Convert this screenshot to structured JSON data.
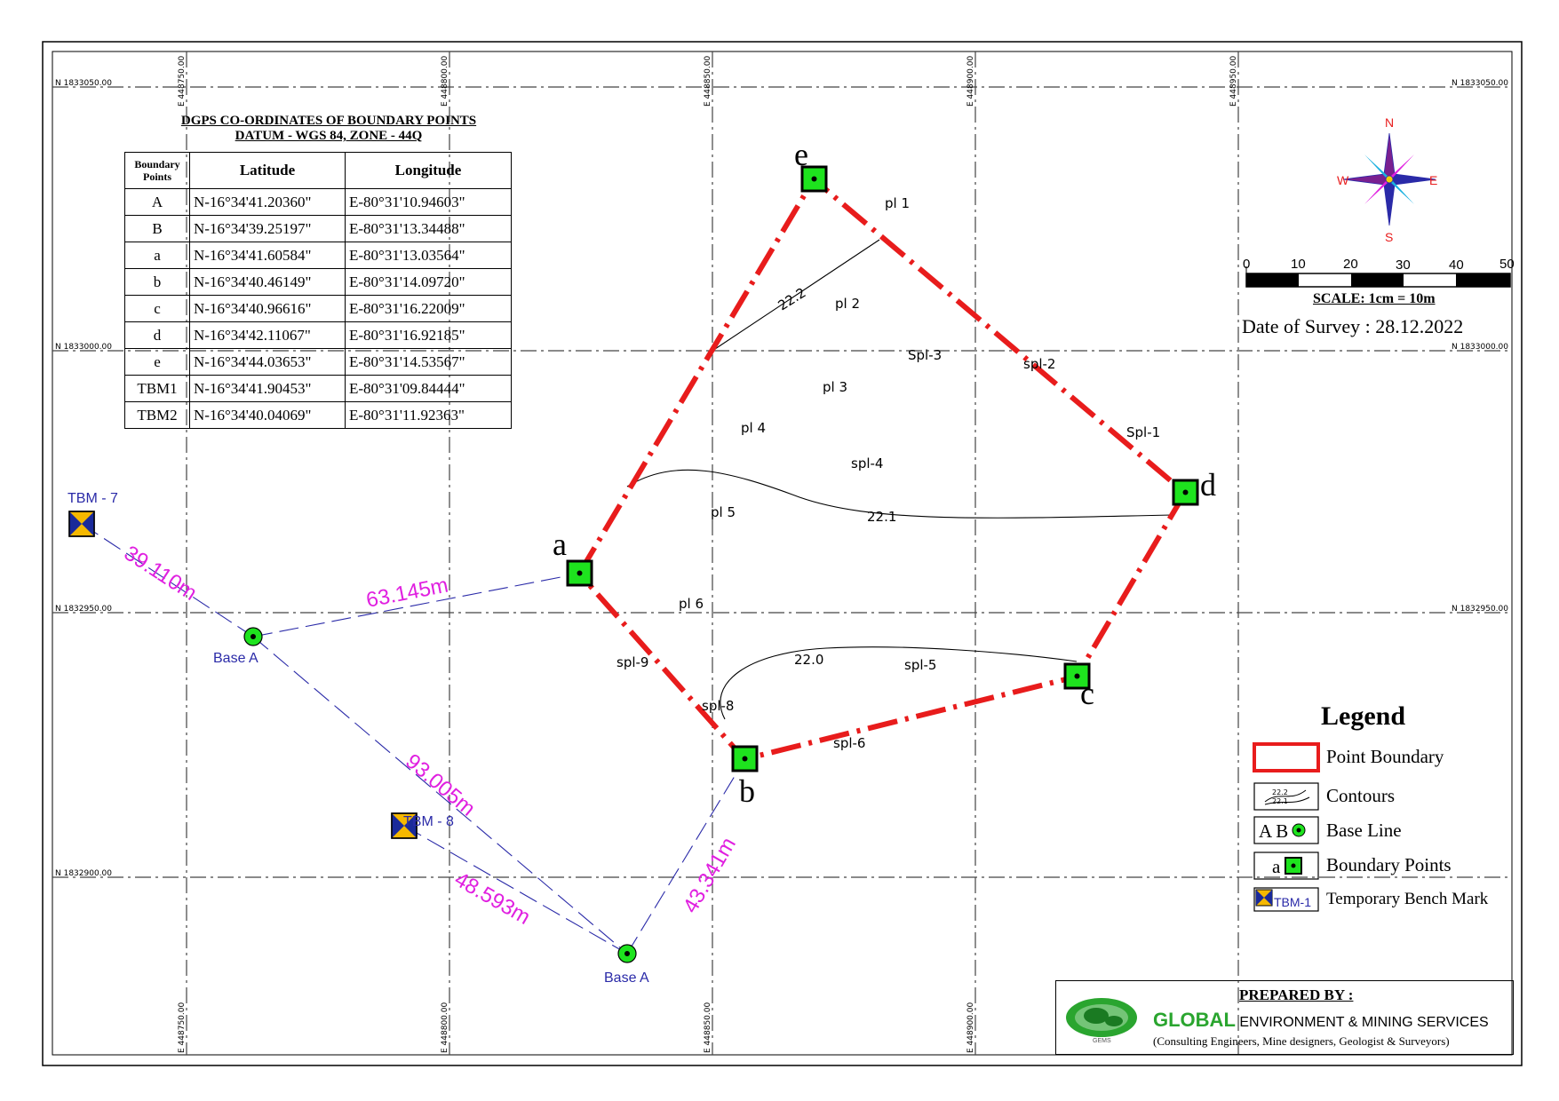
{
  "table": {
    "title": "DGPS CO-ORDINATES OF BOUNDARY POINTS",
    "subtitle": "DATUM - WGS 84,     ZONE - 44Q",
    "headers": [
      "Boundary Points",
      "Latitude",
      "Longitude"
    ],
    "rows": [
      {
        "point": "A",
        "lat": "N-16°34'41.20360\"",
        "lon": "E-80°31'10.94603\""
      },
      {
        "point": "B",
        "lat": "N-16°34'39.25197\"",
        "lon": "E-80°31'13.34488\""
      },
      {
        "point": "a",
        "lat": "N-16°34'41.60584\"",
        "lon": "E-80°31'13.03564\""
      },
      {
        "point": "b",
        "lat": "N-16°34'40.46149\"",
        "lon": "E-80°31'14.09720\""
      },
      {
        "point": "c",
        "lat": "N-16°34'40.96616\"",
        "lon": "E-80°31'16.22009\""
      },
      {
        "point": "d",
        "lat": "N-16°34'42.11067\"",
        "lon": "E-80°31'16.92185\""
      },
      {
        "point": "e",
        "lat": "N-16°34'44.03653\"",
        "lon": "E-80°31'14.53567\""
      },
      {
        "point": "TBM1",
        "lat": "N-16°34'41.90453\"",
        "lon": "E-80°31'09.84444\""
      },
      {
        "point": "TBM2",
        "lat": "N-16°34'40.04069\"",
        "lon": "E-80°31'11.92363\""
      }
    ]
  },
  "grid": {
    "northings": [
      "N 1833050.00",
      "N 1833000.00",
      "N 1832950.00",
      "N 1832900.00"
    ],
    "eastings": [
      "E 448750.00",
      "E 448800.00",
      "E 448850.00",
      "E 448900.00",
      "E 448950.00"
    ]
  },
  "boundary_points": [
    "a",
    "b",
    "c",
    "d",
    "e"
  ],
  "base_labels": [
    "Base A",
    "Base A"
  ],
  "tbm_labels": [
    "TBM - 7",
    "TBM - 8"
  ],
  "distances": [
    "39.110m",
    "63.145m",
    "93.005m",
    "48.593m",
    "43.341m"
  ],
  "contours": [
    "22.2",
    "22.1",
    "22.0"
  ],
  "spot_labels": [
    "pl 1",
    "pl 2",
    "pl 3",
    "pl 4",
    "pl 5",
    "pl 6",
    "Spl-3",
    "spl-2",
    "Spl-1",
    "spl-4",
    "spl-9",
    "spl-8",
    "spl-5",
    "spl-6"
  ],
  "compass": {
    "n": "N",
    "s": "S",
    "e": "E",
    "w": "W"
  },
  "scale": {
    "ticks": [
      "0",
      "10",
      "20",
      "30",
      "40",
      "50"
    ],
    "label": "SCALE: 1cm = 10m"
  },
  "date": "Date of Survey : 28.12.2022",
  "legend": {
    "title": "Legend",
    "items": [
      "Point Boundary",
      "Contours",
      "Base Line",
      "Boundary Points",
      "Temporary Bench Mark"
    ],
    "base_line_icon_text": "A B",
    "boundary_icon_text": "a",
    "tbm_icon_text": "TBM-1",
    "contour_icon_texts": [
      "22.2",
      "22.1"
    ]
  },
  "prepared": {
    "title": "PREPARED BY :",
    "name_bold": "GLOBAL",
    "name_rest": " ENVIRONMENT & MINING SERVICES",
    "sub": "(Consulting Engineers, Mine designers, Geologist & Surveyors)",
    "logo_text": "GEMS"
  },
  "colors": {
    "boundary": "#e81c1c",
    "point_fill": "#1ee31e",
    "magenta": "#e020e0",
    "blue_label": "#2a2aa8",
    "tbm_yellow": "#f5b800",
    "tbm_blue": "#1a2a9a"
  }
}
